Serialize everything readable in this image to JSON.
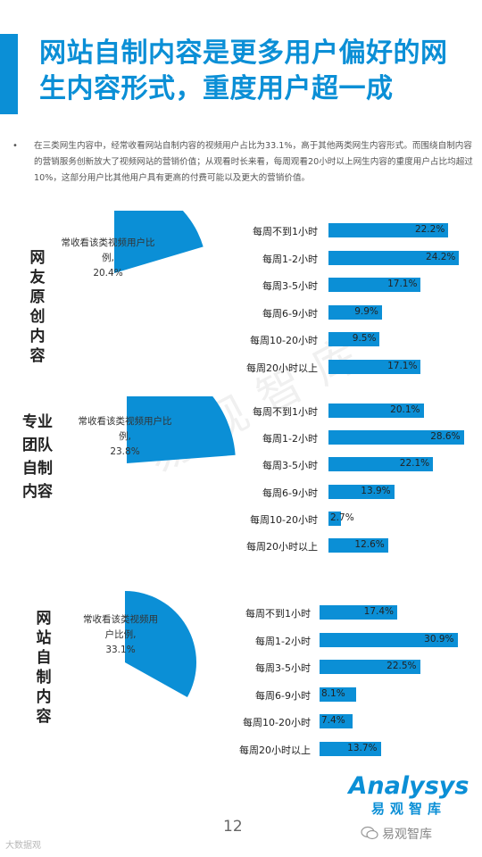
{
  "header": {
    "title_line1": "网站自制内容是更多用户偏好的网",
    "title_line2": "生内容形式，重度用户超一成",
    "accent_color": "#0b8fd6"
  },
  "intro": {
    "bullet": "•",
    "text": "在三类网生内容中，经常收看网站自制内容的视频用户占比为33.1%，高于其他两类网生内容形式。而围绕自制内容的营销服务创新放大了视频网站的营销价值；从观看时长来看，每周观看20小时以上网生内容的重度用户占比均超过10%，这部分用户比其他用户具有更高的付费可能以及更大的营销价值。"
  },
  "chart_data": [
    {
      "type": "bar",
      "group_label": "网友原创内容",
      "pie": {
        "label": "常收看该类视频用户比例,",
        "value": 20.4,
        "value_text": "20.4%"
      },
      "categories": [
        "每周不到1小时",
        "每周1-2小时",
        "每周3-5小时",
        "每周6-9小时",
        "每周10-20小时",
        "每周20小时以上"
      ],
      "values": [
        22.2,
        24.2,
        17.1,
        9.9,
        9.5,
        17.1
      ],
      "value_labels": [
        "22.2%",
        "24.2%",
        "17.1%",
        "9.9%",
        "9.5%",
        "17.1%"
      ]
    },
    {
      "type": "bar",
      "group_label": "专业团队自制内容",
      "pie": {
        "label": "常收看该类视频用户比例,",
        "value": 23.8,
        "value_text": "23.8%"
      },
      "categories": [
        "每周不到1小时",
        "每周1-2小时",
        "每周3-5小时",
        "每周6-9小时",
        "每周10-20小时",
        "每周20小时以上"
      ],
      "values": [
        20.1,
        28.6,
        22.1,
        13.9,
        2.7,
        12.6
      ],
      "value_labels": [
        "20.1%",
        "28.6%",
        "22.1%",
        "13.9%",
        "2.7%",
        "12.6%"
      ]
    },
    {
      "type": "bar",
      "group_label": "网站自制内容",
      "pie": {
        "label": "常收看该类视频用户比例,",
        "value": 33.1,
        "value_text": "33.1%"
      },
      "categories": [
        "每周不到1小时",
        "每周1-2小时",
        "每周3-5小时",
        "每周6-9小时",
        "每周10-20小时",
        "每周20小时以上"
      ],
      "values": [
        17.4,
        30.9,
        22.5,
        8.1,
        7.4,
        13.7
      ],
      "value_labels": [
        "17.4%",
        "30.9%",
        "22.5%",
        "8.1%",
        "7.4%",
        "13.7%"
      ]
    }
  ],
  "watermark": "易观智库",
  "logo": {
    "main": "Analysys",
    "sub": "易观智库"
  },
  "page_number": "12",
  "footer": {
    "left": "大数据观",
    "right": "易观智库"
  }
}
